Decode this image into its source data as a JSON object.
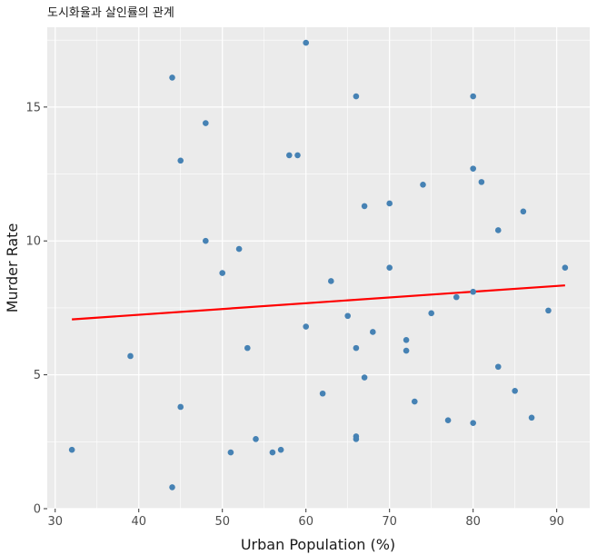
{
  "chart_data": {
    "type": "scatter",
    "title": "도시화율과 살인률의 관계",
    "xlabel": "Urban Population (%)",
    "ylabel": "Murder Rate",
    "xlim": [
      29.05,
      93.95
    ],
    "ylim": [
      0,
      17.98
    ],
    "x_ticks": [
      30,
      40,
      50,
      60,
      70,
      80,
      90
    ],
    "y_ticks": [
      0,
      5,
      10,
      15
    ],
    "grid": true,
    "legend": "none",
    "point_color": "#4682B4",
    "panel_color": "#EBEBEB",
    "trend_color": "#FF0000",
    "points": [
      {
        "x": 58,
        "y": 13.2
      },
      {
        "x": 48,
        "y": 10.0
      },
      {
        "x": 80,
        "y": 8.1
      },
      {
        "x": 50,
        "y": 8.8
      },
      {
        "x": 91,
        "y": 9.0
      },
      {
        "x": 78,
        "y": 7.9
      },
      {
        "x": 77,
        "y": 3.3
      },
      {
        "x": 72,
        "y": 5.9
      },
      {
        "x": 80,
        "y": 15.4
      },
      {
        "x": 60,
        "y": 17.4
      },
      {
        "x": 83,
        "y": 5.3
      },
      {
        "x": 54,
        "y": 2.6
      },
      {
        "x": 83,
        "y": 10.4
      },
      {
        "x": 65,
        "y": 7.2
      },
      {
        "x": 57,
        "y": 2.2
      },
      {
        "x": 66,
        "y": 6.0
      },
      {
        "x": 52,
        "y": 9.7
      },
      {
        "x": 66,
        "y": 15.4
      },
      {
        "x": 51,
        "y": 2.1
      },
      {
        "x": 67,
        "y": 11.3
      },
      {
        "x": 85,
        "y": 4.4
      },
      {
        "x": 74,
        "y": 12.1
      },
      {
        "x": 66,
        "y": 2.7
      },
      {
        "x": 44,
        "y": 16.1
      },
      {
        "x": 70,
        "y": 9.0
      },
      {
        "x": 53,
        "y": 6.0
      },
      {
        "x": 62,
        "y": 4.3
      },
      {
        "x": 81,
        "y": 12.2
      },
      {
        "x": 56,
        "y": 2.1
      },
      {
        "x": 89,
        "y": 7.4
      },
      {
        "x": 70,
        "y": 11.4
      },
      {
        "x": 86,
        "y": 11.1
      },
      {
        "x": 45,
        "y": 13.0
      },
      {
        "x": 44,
        "y": 0.8
      },
      {
        "x": 75,
        "y": 7.3
      },
      {
        "x": 68,
        "y": 6.6
      },
      {
        "x": 72,
        "y": 6.3
      },
      {
        "x": 87,
        "y": 3.4
      },
      {
        "x": 48,
        "y": 14.4
      },
      {
        "x": 45,
        "y": 3.8
      },
      {
        "x": 59,
        "y": 13.2
      },
      {
        "x": 80,
        "y": 12.7
      },
      {
        "x": 80,
        "y": 3.2
      },
      {
        "x": 32,
        "y": 2.2
      },
      {
        "x": 63,
        "y": 8.5
      },
      {
        "x": 73,
        "y": 4.0
      },
      {
        "x": 39,
        "y": 5.7
      },
      {
        "x": 66,
        "y": 2.6
      },
      {
        "x": 60,
        "y": 6.8
      },
      {
        "x": 67,
        "y": 4.9
      }
    ],
    "trend_line": {
      "x": [
        32,
        91
      ],
      "y": [
        7.07,
        8.34
      ]
    }
  }
}
